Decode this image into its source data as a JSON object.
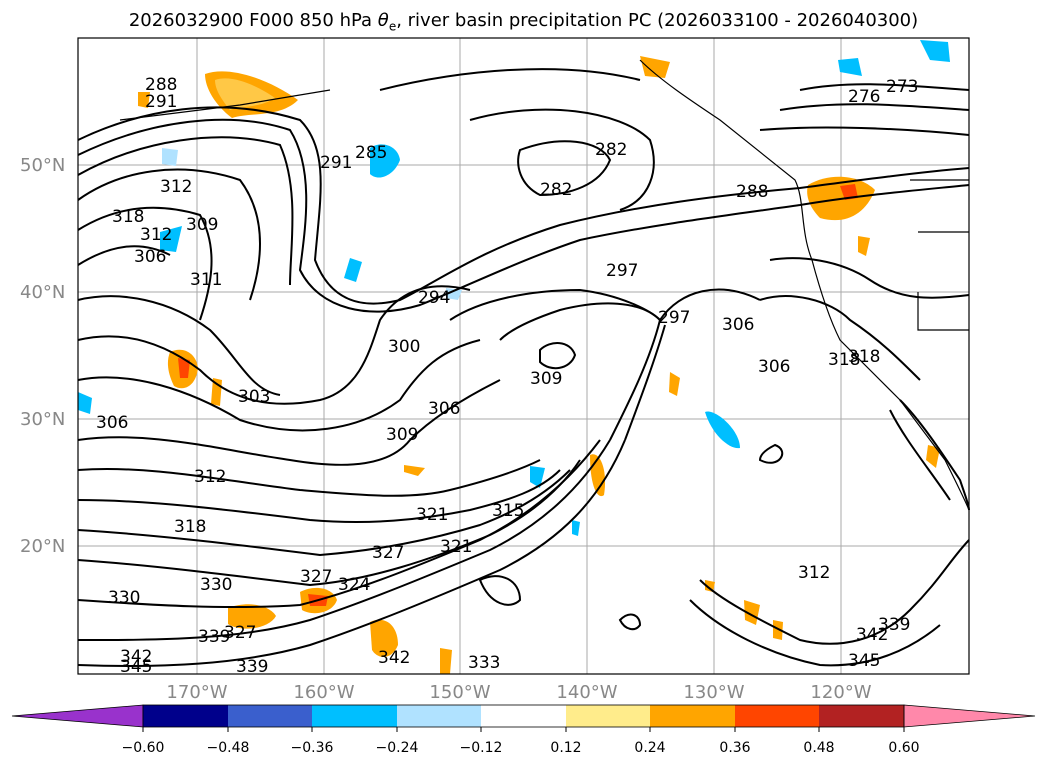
{
  "title_plain": "2026032900 F000 850 hPa θe, river basin precipitation PC (2026033100 - 2026040300)",
  "map": {
    "lat_labels": [
      "50°N",
      "40°N",
      "30°N",
      "20°N"
    ],
    "lon_labels": [
      "170°W",
      "160°W",
      "150°W",
      "140°W",
      "130°W",
      "120°W"
    ],
    "contour_labels": [
      "288",
      "291",
      "312",
      "318",
      "312",
      "309",
      "306",
      "311",
      "291",
      "285",
      "282",
      "282",
      "276",
      "273",
      "288",
      "297",
      "297",
      "294",
      "300",
      "303",
      "306",
      "309",
      "306",
      "306",
      "306",
      "318",
      "318",
      "309",
      "312",
      "318",
      "321",
      "315",
      "327",
      "321",
      "324",
      "327",
      "330",
      "330",
      "339",
      "342",
      "345",
      "339",
      "333",
      "342",
      "345",
      "339",
      "342",
      "312",
      "327"
    ]
  },
  "colorbar": {
    "ticks": [
      "−0.60",
      "−0.48",
      "−0.36",
      "−0.24",
      "−0.12",
      "0.12",
      "0.24",
      "0.36",
      "0.48",
      "0.60"
    ],
    "colors": [
      "#9932cc",
      "#00008b",
      "#3a5fcd",
      "#00bfff",
      "#b0e2ff",
      "#ffffff",
      "#ffec8b",
      "#ffa500",
      "#ff4500",
      "#b22222",
      "#ff88aa"
    ]
  }
}
